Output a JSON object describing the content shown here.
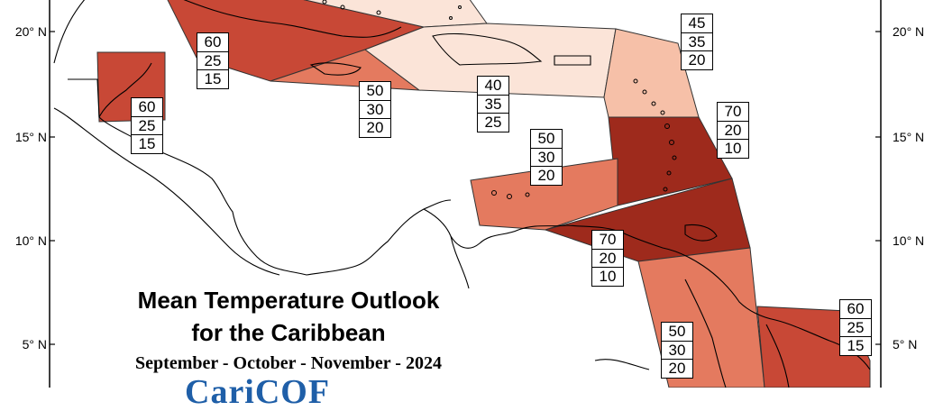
{
  "title_line1": "Mean Temperature Outlook",
  "title_line2": "for the Caribbean",
  "period": "September - October - November - 2024",
  "logo_text": "CariCOF",
  "latitude_labels": [
    "20° N",
    "15° N",
    "10° N",
    "5° N"
  ],
  "colors": {
    "land_outline": "#000000",
    "prob_70": "#9e2a1c",
    "prob_60": "#c84836",
    "prob_50": "#e47a5f",
    "prob_45": "#f6c0a8",
    "prob_40": "#fbe4d8",
    "logo": "#1f5fa8"
  },
  "probability_boxes": [
    {
      "above": "60",
      "normal": "25",
      "below": "15"
    },
    {
      "above": "60",
      "normal": "25",
      "below": "15"
    },
    {
      "above": "50",
      "normal": "30",
      "below": "20"
    },
    {
      "above": "40",
      "normal": "35",
      "below": "25"
    },
    {
      "above": "45",
      "normal": "35",
      "below": "20"
    },
    {
      "above": "70",
      "normal": "20",
      "below": "10"
    },
    {
      "above": "50",
      "normal": "30",
      "below": "20"
    },
    {
      "above": "70",
      "normal": "20",
      "below": "10"
    },
    {
      "above": "50",
      "normal": "30",
      "below": "20"
    },
    {
      "above": "60",
      "normal": "25",
      "below": "15"
    }
  ]
}
